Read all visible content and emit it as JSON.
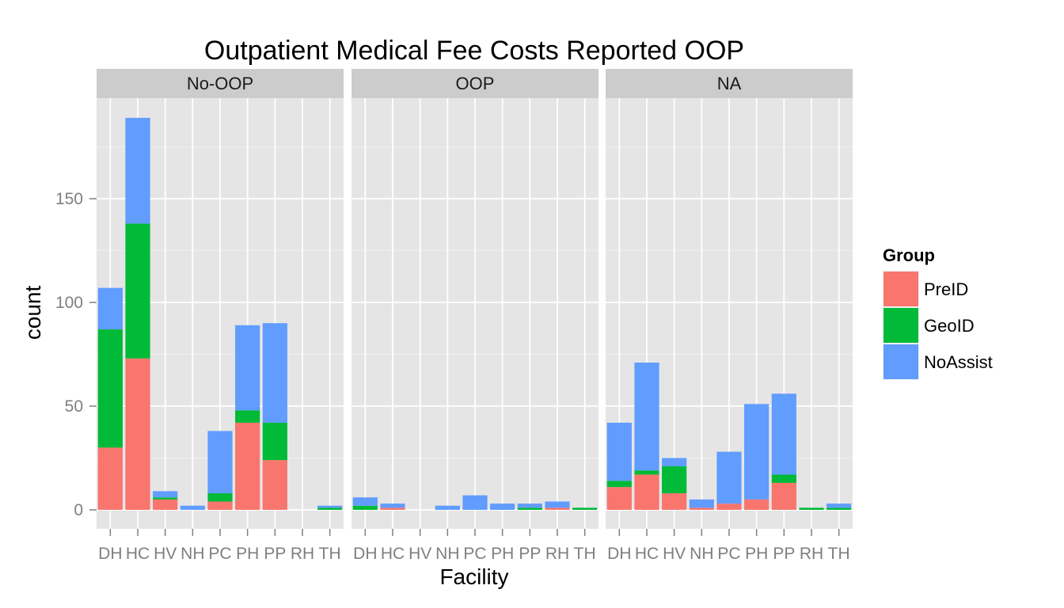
{
  "chart_data": {
    "type": "bar",
    "stacked": true,
    "title": "Outpatient Medical Fee Costs Reported OOP",
    "xlabel": "Facility",
    "ylabel": "count",
    "ylim": [
      0,
      198
    ],
    "y_ticks": [
      0,
      50,
      100,
      150
    ],
    "grid": true,
    "legend": {
      "title": "Group",
      "position": "right",
      "items": [
        {
          "name": "PreID",
          "color": "#F8766D"
        },
        {
          "name": "GeoID",
          "color": "#00BA38"
        },
        {
          "name": "NoAssist",
          "color": "#619CFF"
        }
      ]
    },
    "categories": [
      "DH",
      "HC",
      "HV",
      "NH",
      "PC",
      "PH",
      "PP",
      "RH",
      "TH"
    ],
    "facets": [
      {
        "label": "No-OOP",
        "series": [
          {
            "name": "PreID",
            "values": [
              30,
              73,
              5,
              0,
              4,
              42,
              24,
              0,
              0
            ]
          },
          {
            "name": "GeoID",
            "values": [
              57,
              65,
              1,
              0,
              4,
              6,
              18,
              0,
              1
            ]
          },
          {
            "name": "NoAssist",
            "values": [
              20,
              51,
              3,
              2,
              30,
              41,
              48,
              0,
              1
            ]
          }
        ]
      },
      {
        "label": "OOP",
        "series": [
          {
            "name": "PreID",
            "values": [
              0,
              1,
              0,
              0,
              0,
              0,
              0,
              1,
              0
            ]
          },
          {
            "name": "GeoID",
            "values": [
              2,
              0,
              0,
              0,
              0,
              0,
              1,
              0,
              1
            ]
          },
          {
            "name": "NoAssist",
            "values": [
              4,
              2,
              0,
              2,
              7,
              3,
              2,
              3,
              0
            ]
          }
        ]
      },
      {
        "label": "NA",
        "series": [
          {
            "name": "PreID",
            "values": [
              11,
              17,
              8,
              1,
              3,
              5,
              13,
              0,
              0
            ]
          },
          {
            "name": "GeoID",
            "values": [
              3,
              2,
              13,
              0,
              0,
              0,
              4,
              1,
              1
            ]
          },
          {
            "name": "NoAssist",
            "values": [
              28,
              52,
              4,
              4,
              25,
              46,
              39,
              0,
              2
            ]
          }
        ]
      }
    ]
  }
}
